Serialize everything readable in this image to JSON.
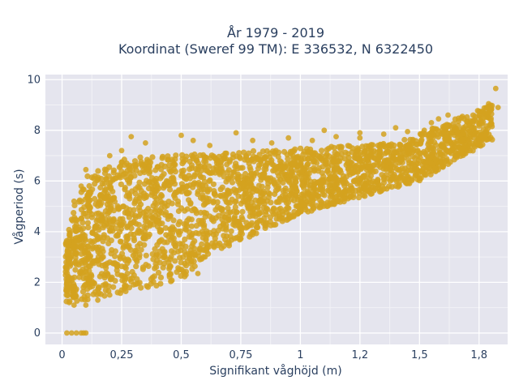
{
  "chart_data": {
    "type": "scatter",
    "title": "År 1979 - 2019",
    "subtitle": "Koordinat (Sweref 99 TM): E 336532, N 6322450",
    "xlabel": "Signifikant våghöjd (m)",
    "ylabel": "Vågperiod (s)",
    "xlim": [
      -0.07,
      1.87
    ],
    "ylim": [
      -0.45,
      10.2
    ],
    "x_ticks": [
      0,
      0.25,
      0.5,
      0.75,
      1,
      1.25,
      1.5,
      1.75
    ],
    "x_tick_labels": [
      "0",
      "0,25",
      "0,5",
      "0,75",
      "1",
      "1,2",
      "1,5",
      "1,8"
    ],
    "y_ticks": [
      0,
      2,
      4,
      6,
      8,
      10
    ],
    "y_tick_labels": [
      "0",
      "2",
      "4",
      "6",
      "8",
      "10"
    ],
    "grid": true,
    "marker_color": "#d4a21e",
    "plot_bgcolor": "#e5e5ee",
    "series": [
      {
        "points": [
          [
            0.02,
            0
          ],
          [
            0.04,
            0
          ],
          [
            0.06,
            0
          ],
          [
            0.08,
            0
          ],
          [
            0.09,
            0
          ],
          [
            0.1,
            0
          ],
          [
            1.82,
            9.65
          ],
          [
            1.79,
            9.05
          ],
          [
            1.78,
            8.9
          ],
          [
            1.75,
            8.75
          ],
          [
            1.68,
            8.55
          ],
          [
            1.62,
            8.6
          ],
          [
            1.58,
            8.45
          ],
          [
            1.55,
            8.3
          ],
          [
            1.52,
            8.0
          ],
          [
            1.45,
            7.95
          ],
          [
            1.4,
            8.1
          ],
          [
            1.35,
            7.85
          ],
          [
            1.25,
            7.7
          ],
          [
            1.1,
            8.0
          ],
          [
            0.95,
            7.7
          ],
          [
            0.8,
            7.6
          ],
          [
            0.73,
            7.9
          ],
          [
            0.55,
            7.6
          ],
          [
            0.5,
            7.8
          ],
          [
            0.35,
            7.5
          ],
          [
            0.29,
            7.75
          ],
          [
            0.25,
            7.2
          ],
          [
            0.2,
            7.0
          ],
          [
            0.1,
            6.45
          ],
          [
            0.08,
            5.8
          ],
          [
            0.05,
            5.2
          ],
          [
            0.03,
            3.6
          ],
          [
            0.02,
            3.1
          ],
          [
            0.02,
            1.7
          ],
          [
            0.03,
            1.2
          ],
          [
            0.05,
            1.1
          ],
          [
            0.1,
            1.1
          ],
          [
            0.15,
            1.3
          ],
          [
            0.2,
            1.5
          ],
          [
            0.25,
            1.7
          ],
          [
            0.3,
            1.9
          ],
          [
            0.38,
            2.2
          ],
          [
            0.45,
            2.3
          ],
          [
            0.52,
            2.3
          ],
          [
            0.57,
            2.35
          ],
          [
            0.6,
            3.0
          ],
          [
            0.7,
            3.6
          ],
          [
            0.8,
            4.0
          ],
          [
            0.9,
            4.5
          ],
          [
            1.0,
            4.8
          ],
          [
            1.1,
            5.1
          ],
          [
            1.2,
            5.3
          ],
          [
            1.3,
            5.5
          ],
          [
            1.4,
            5.8
          ],
          [
            1.5,
            6.1
          ],
          [
            1.6,
            6.6
          ],
          [
            1.7,
            7.2
          ],
          [
            1.75,
            7.6
          ],
          [
            1.8,
            8.4
          ],
          [
            1.83,
            8.9
          ],
          [
            1.25,
            7.9
          ],
          [
            1.15,
            7.75
          ],
          [
            1.05,
            7.6
          ],
          [
            0.88,
            7.5
          ],
          [
            0.62,
            7.4
          ]
        ]
      }
    ]
  }
}
